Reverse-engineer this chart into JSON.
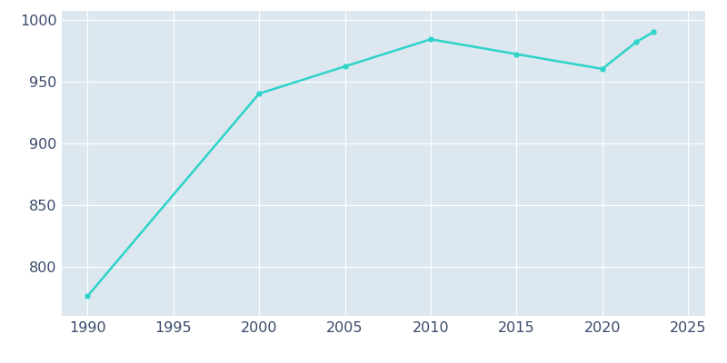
{
  "years": [
    1990,
    2000,
    2005,
    2010,
    2015,
    2020,
    2022,
    2023
  ],
  "population": [
    776,
    940,
    962,
    984,
    972,
    960,
    982,
    990
  ],
  "line_color": "#2dd4c8",
  "bg_color": "#ffffff",
  "plot_bg_color": "#dce7f0",
  "xlim": [
    1988.5,
    2026
  ],
  "ylim": [
    760,
    1007
  ],
  "xticks": [
    1990,
    1995,
    2000,
    2005,
    2010,
    2015,
    2020,
    2025
  ],
  "yticks": [
    800,
    850,
    900,
    950,
    1000
  ],
  "grid": true,
  "line_width": 1.8,
  "marker": "o",
  "marker_size": 3.5,
  "tick_color": "#3a4a6b",
  "tick_fontsize": 11.5
}
